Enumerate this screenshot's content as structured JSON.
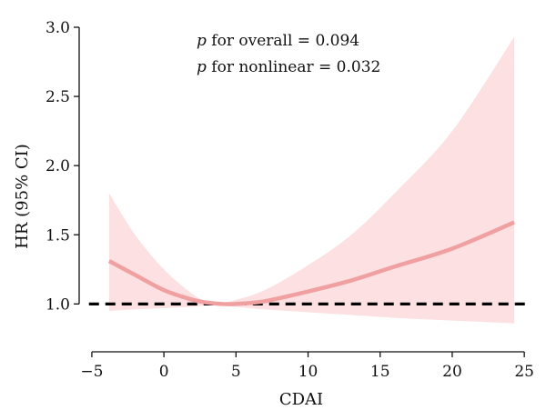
{
  "chart_data": {
    "type": "line",
    "xlabel": "CDAI",
    "ylabel": "HR (95% CI)",
    "xlim": [
      -5.5,
      26
    ],
    "ylim": [
      0.7,
      3.0
    ],
    "x_ticks": [
      -5,
      0,
      5,
      10,
      15,
      20,
      25
    ],
    "x_tick_labels": [
      "−5",
      "0",
      "5",
      "10",
      "15",
      "20",
      "25"
    ],
    "y_ticks": [
      1.0,
      1.5,
      2.0,
      2.5,
      3.0
    ],
    "y_tick_labels": [
      "1.0",
      "1.5",
      "2.0",
      "2.5",
      "3.0"
    ],
    "reference_line": {
      "y": 1.0,
      "style": "dashed",
      "color": "#000000"
    },
    "annotations": [
      {
        "italic": "p",
        "text": " for overall = 0.094"
      },
      {
        "italic": "p",
        "text": " for nonlinear = 0.032"
      }
    ],
    "series": [
      {
        "color": "#f0a0a0",
        "band_color": "#fce0e2",
        "x": [
          -3.8,
          -2,
          0,
          2,
          3,
          4,
          5,
          7,
          10,
          13,
          16,
          20,
          24.3
        ],
        "y": [
          1.31,
          1.21,
          1.1,
          1.03,
          1.01,
          1.0,
          1.0,
          1.02,
          1.09,
          1.17,
          1.27,
          1.4,
          1.59
        ],
        "lower": [
          0.95,
          0.96,
          0.97,
          0.98,
          0.99,
          0.99,
          0.98,
          0.96,
          0.94,
          0.92,
          0.9,
          0.88,
          0.86
        ],
        "upper": [
          1.8,
          1.5,
          1.25,
          1.07,
          1.02,
          1.01,
          1.03,
          1.1,
          1.28,
          1.5,
          1.8,
          2.25,
          2.93
        ]
      }
    ]
  }
}
